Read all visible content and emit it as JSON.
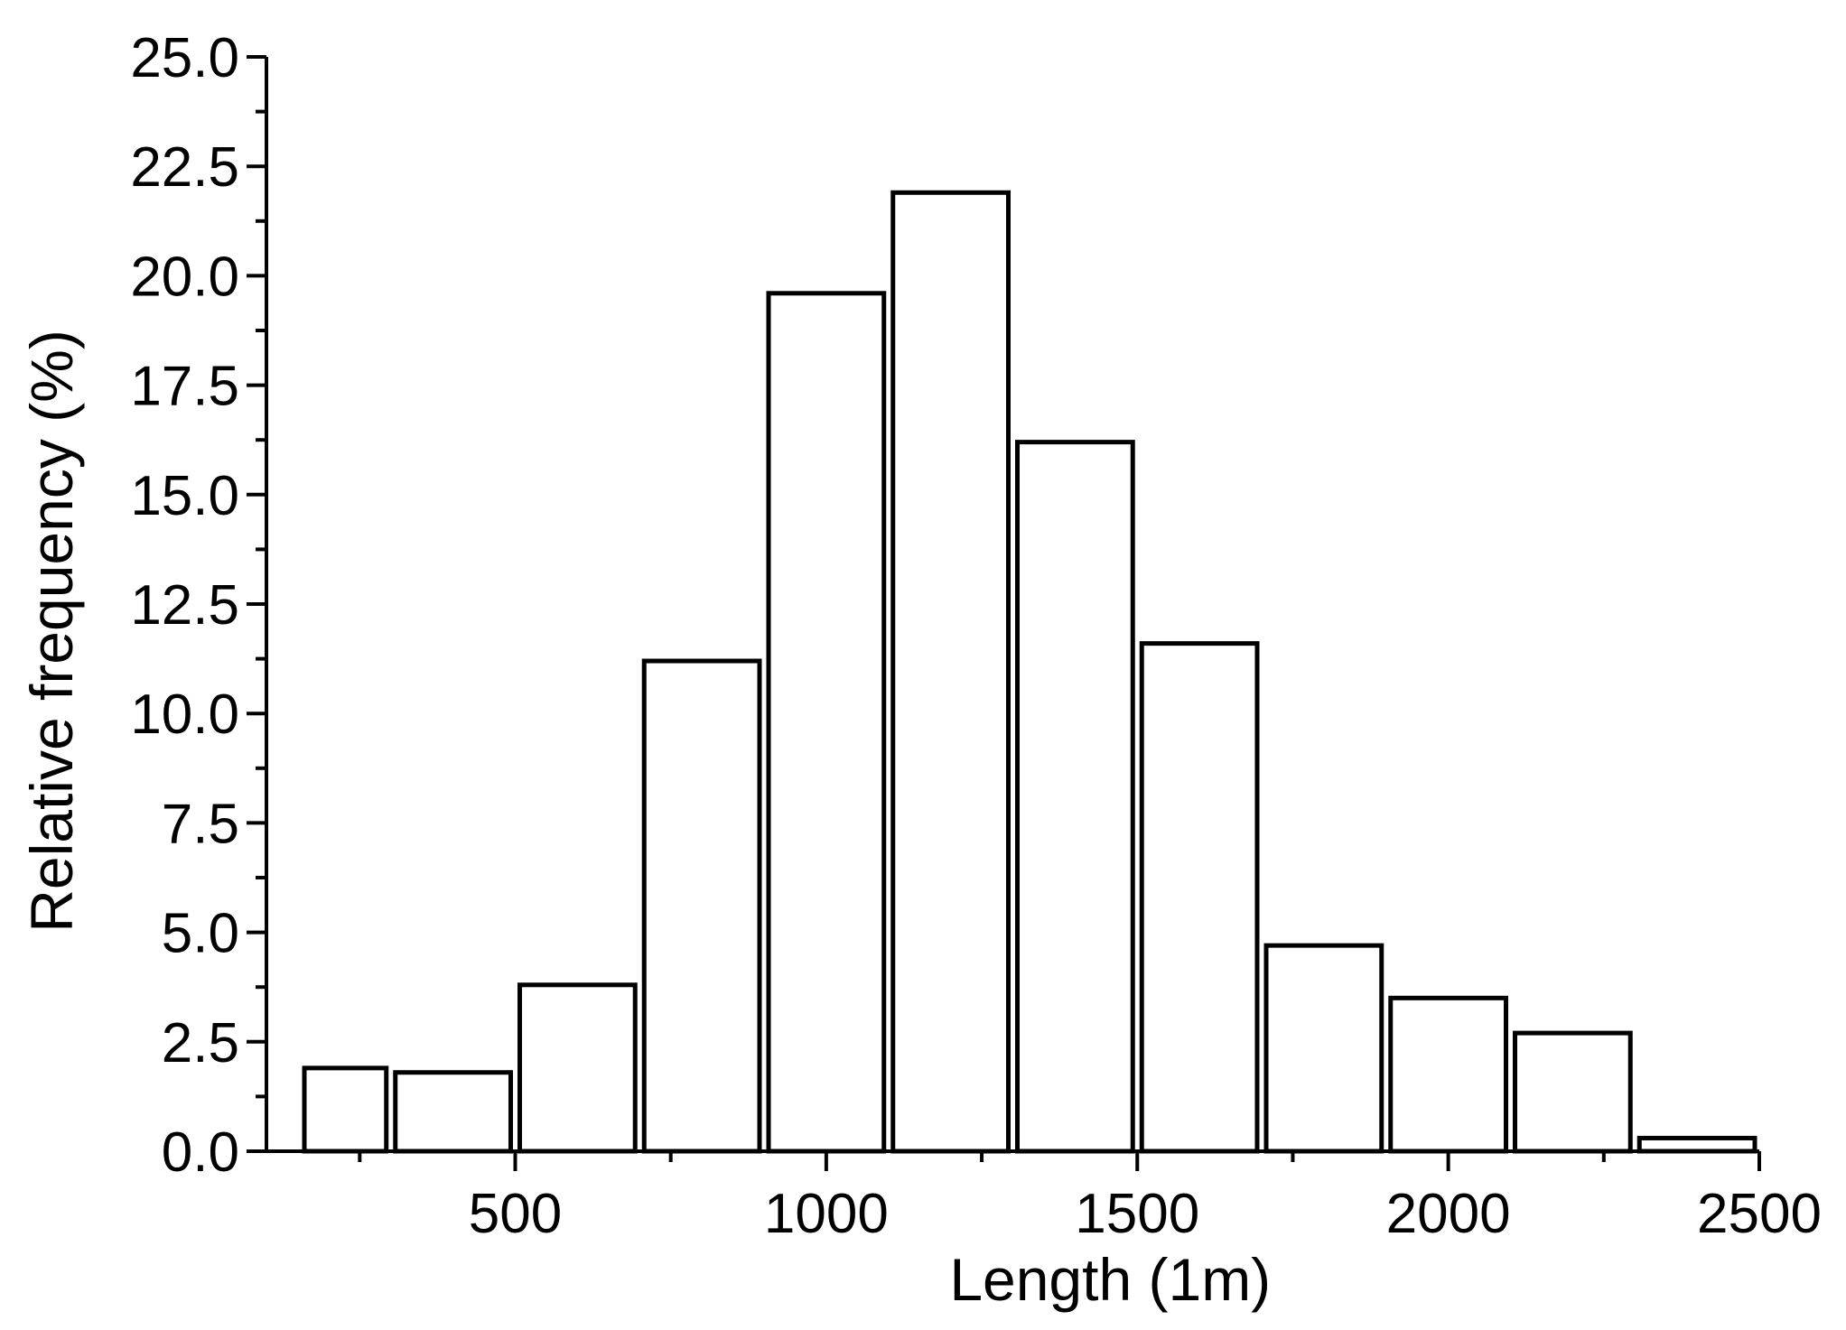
{
  "chart_data": {
    "type": "bar",
    "title": "",
    "xlabel": "Length (1m)",
    "ylabel": "Relative frequency (%)",
    "xlim": [
      100,
      2500
    ],
    "ylim": [
      0,
      25
    ],
    "bin_width": 200,
    "bins": [
      {
        "start": 100,
        "end": 300,
        "value": 1.9
      },
      {
        "start": 300,
        "end": 500,
        "value": 1.8
      },
      {
        "start": 500,
        "end": 700,
        "value": 3.8
      },
      {
        "start": 700,
        "end": 900,
        "value": 11.2
      },
      {
        "start": 900,
        "end": 1100,
        "value": 19.6
      },
      {
        "start": 1100,
        "end": 1300,
        "value": 21.9
      },
      {
        "start": 1300,
        "end": 1500,
        "value": 16.2
      },
      {
        "start": 1500,
        "end": 1700,
        "value": 11.6
      },
      {
        "start": 1700,
        "end": 1900,
        "value": 4.7
      },
      {
        "start": 1900,
        "end": 2100,
        "value": 3.5
      },
      {
        "start": 2100,
        "end": 2300,
        "value": 2.7
      },
      {
        "start": 2300,
        "end": 2500,
        "value": 0.3
      }
    ],
    "x_ticks": [
      500,
      1000,
      1500,
      2000,
      2500
    ],
    "x_tick_labels": [
      "500",
      "1000",
      "1500",
      "2000",
      "2500"
    ],
    "y_ticks": [
      0,
      2.5,
      5,
      7.5,
      10,
      12.5,
      15,
      17.5,
      20,
      22.5,
      25
    ],
    "y_tick_labels": [
      "0.0",
      "2.5",
      "5.0",
      "7.5",
      "10.0",
      "12.5",
      "15.0",
      "17.5",
      "20.0",
      "22.5",
      "25.0"
    ],
    "grid": false,
    "legend": "none"
  }
}
